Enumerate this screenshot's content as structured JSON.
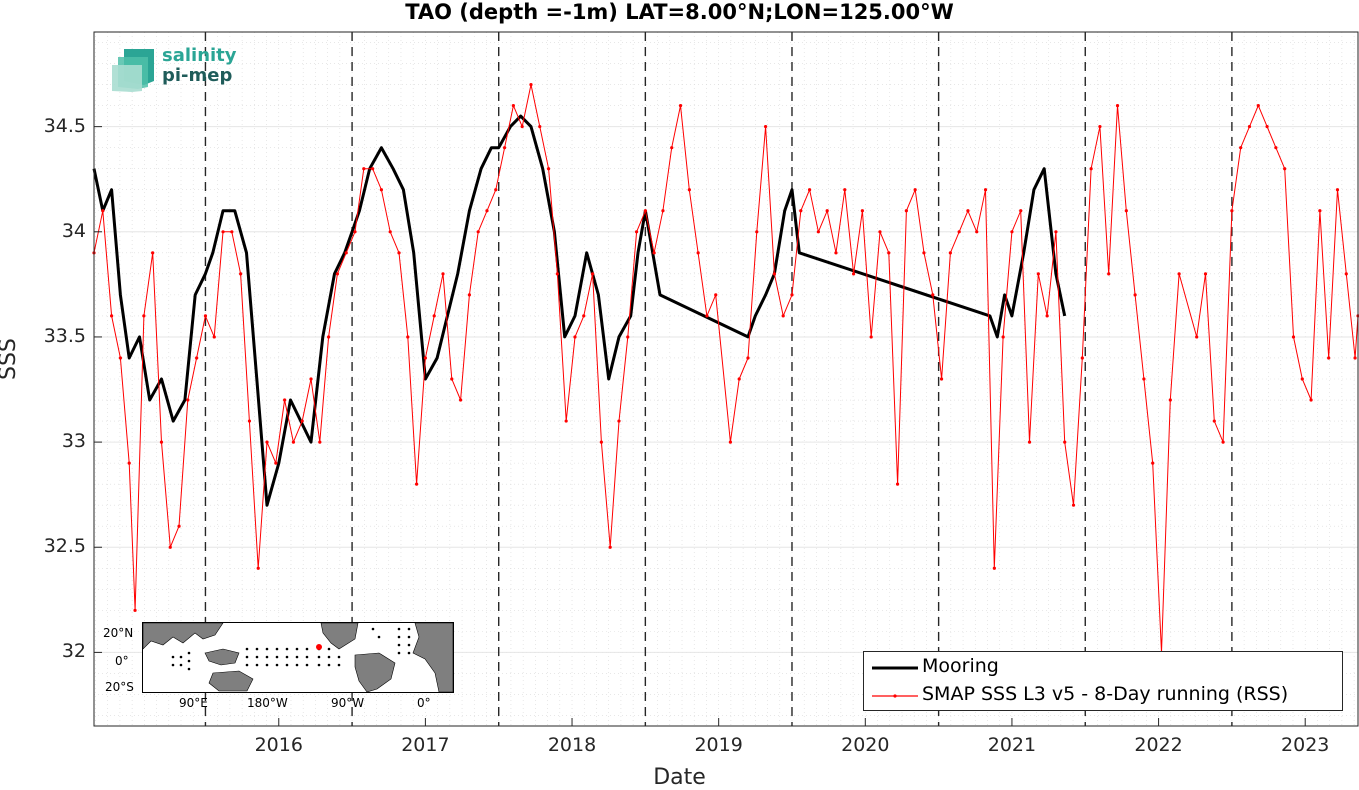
{
  "chart_data": {
    "type": "line",
    "title": "TAO (depth =-1m) LAT=8.00°N;LON=125.00°W",
    "xlabel": "Date",
    "ylabel": "SSS",
    "ylim": [
      31.65,
      34.95
    ],
    "xlim": [
      2015.24,
      2023.86
    ],
    "x_ticks": [
      "2016",
      "2017",
      "2018",
      "2019",
      "2020",
      "2021",
      "2022",
      "2023"
    ],
    "y_ticks": [
      "32",
      "32.5",
      "33",
      "33.5",
      "34",
      "34.5"
    ],
    "grid": true,
    "legend_position": "bottom-right",
    "year_lines": [
      2016,
      2017,
      2018,
      2019,
      2020,
      2021,
      2022,
      2023
    ],
    "series": [
      {
        "name": "Mooring",
        "color": "#000000",
        "x": [
          2015.24,
          2015.3,
          2015.36,
          2015.42,
          2015.48,
          2015.55,
          2015.62,
          2015.7,
          2015.78,
          2015.86,
          2015.93,
          2016.0,
          2016.05,
          2016.12,
          2016.2,
          2016.28,
          2016.35,
          2016.42,
          2016.5,
          2016.58,
          2016.65,
          2016.72,
          2016.8,
          2016.88,
          2016.95,
          2017.0,
          2017.05,
          2017.12,
          2017.2,
          2017.28,
          2017.35,
          2017.42,
          2017.5,
          2017.58,
          2017.65,
          2017.72,
          2017.8,
          2017.88,
          2017.95,
          2018.0,
          2018.08,
          2018.15,
          2018.22,
          2018.3,
          2018.38,
          2018.45,
          2018.52,
          2018.6,
          2018.68,
          2018.75,
          2018.82,
          2018.9,
          2018.95,
          2019.0,
          2019.05,
          2019.1,
          2019.7,
          2019.75,
          2019.82,
          2019.88,
          2019.95,
          2020.0,
          2020.05,
          2021.35,
          2021.4,
          2021.45,
          2021.5,
          2021.58,
          2021.65,
          2021.72,
          2021.8,
          2021.86
        ],
        "values": [
          34.3,
          34.1,
          34.2,
          33.7,
          33.4,
          33.5,
          33.2,
          33.3,
          33.1,
          33.2,
          33.7,
          33.8,
          33.9,
          34.1,
          34.1,
          33.9,
          33.3,
          32.7,
          32.9,
          33.2,
          33.1,
          33.0,
          33.5,
          33.8,
          33.9,
          34.0,
          34.1,
          34.3,
          34.4,
          34.3,
          34.2,
          33.9,
          33.3,
          33.4,
          33.6,
          33.8,
          34.1,
          34.3,
          34.4,
          34.4,
          34.5,
          34.55,
          34.5,
          34.3,
          34.0,
          33.5,
          33.6,
          33.9,
          33.7,
          33.3,
          33.5,
          33.6,
          33.9,
          34.1,
          33.9,
          33.7,
          33.5,
          33.6,
          33.7,
          33.8,
          34.1,
          34.2,
          33.9,
          33.6,
          33.5,
          33.7,
          33.6,
          33.9,
          34.2,
          34.3,
          33.8,
          33.6
        ]
      },
      {
        "name": "SMAP SSS L3 v5 - 8-Day running (RSS)",
        "color": "#ff0000",
        "x": [
          2015.24,
          2015.3,
          2015.36,
          2015.42,
          2015.48,
          2015.52,
          2015.58,
          2015.64,
          2015.7,
          2015.76,
          2015.82,
          2015.88,
          2015.94,
          2016.0,
          2016.06,
          2016.12,
          2016.18,
          2016.24,
          2016.3,
          2016.36,
          2016.42,
          2016.48,
          2016.54,
          2016.6,
          2016.66,
          2016.72,
          2016.78,
          2016.84,
          2016.9,
          2016.96,
          2017.02,
          2017.08,
          2017.14,
          2017.2,
          2017.26,
          2017.32,
          2017.38,
          2017.44,
          2017.5,
          2017.56,
          2017.62,
          2017.68,
          2017.74,
          2017.8,
          2017.86,
          2017.92,
          2017.98,
          2018.04,
          2018.1,
          2018.16,
          2018.22,
          2018.28,
          2018.34,
          2018.4,
          2018.46,
          2018.52,
          2018.58,
          2018.64,
          2018.7,
          2018.76,
          2018.82,
          2018.88,
          2018.94,
          2019.0,
          2019.06,
          2019.12,
          2019.18,
          2019.24,
          2019.3,
          2019.36,
          2019.42,
          2019.48,
          2019.58,
          2019.64,
          2019.7,
          2019.76,
          2019.82,
          2019.88,
          2019.94,
          2020.0,
          2020.06,
          2020.12,
          2020.18,
          2020.24,
          2020.3,
          2020.36,
          2020.42,
          2020.48,
          2020.54,
          2020.6,
          2020.66,
          2020.72,
          2020.78,
          2020.84,
          2020.9,
          2020.96,
          2021.02,
          2021.08,
          2021.14,
          2021.2,
          2021.26,
          2021.32,
          2021.38,
          2021.44,
          2021.5,
          2021.56,
          2021.62,
          2021.68,
          2021.74,
          2021.8,
          2021.86,
          2021.92,
          2021.98,
          2022.04,
          2022.1,
          2022.16,
          2022.22,
          2022.28,
          2022.34,
          2022.4,
          2022.46,
          2022.52,
          2022.58,
          2022.64,
          2022.76,
          2022.82,
          2022.88,
          2022.94,
          2023.0,
          2023.06,
          2023.12,
          2023.18,
          2023.24,
          2023.3,
          2023.36,
          2023.42,
          2023.48,
          2023.54,
          2023.6,
          2023.66,
          2023.72,
          2023.78,
          2023.84,
          2023.86
        ],
        "values": [
          33.9,
          34.1,
          33.6,
          33.4,
          32.9,
          32.2,
          33.6,
          33.9,
          33.0,
          32.5,
          32.6,
          33.2,
          33.4,
          33.6,
          33.5,
          34.0,
          34.0,
          33.8,
          33.1,
          32.4,
          33.0,
          32.9,
          33.2,
          33.0,
          33.1,
          33.3,
          33.0,
          33.5,
          33.8,
          33.9,
          34.0,
          34.3,
          34.3,
          34.2,
          34.0,
          33.9,
          33.5,
          32.8,
          33.4,
          33.6,
          33.8,
          33.3,
          33.2,
          33.7,
          34.0,
          34.1,
          34.2,
          34.4,
          34.6,
          34.5,
          34.7,
          34.5,
          34.3,
          33.8,
          33.1,
          33.5,
          33.6,
          33.8,
          33.0,
          32.5,
          33.1,
          33.5,
          34.0,
          34.1,
          33.9,
          34.1,
          34.4,
          34.6,
          34.2,
          33.9,
          33.6,
          33.7,
          33.0,
          33.3,
          33.4,
          34.0,
          34.5,
          33.8,
          33.6,
          33.7,
          34.1,
          34.2,
          34.0,
          34.1,
          33.9,
          34.2,
          33.8,
          34.1,
          33.5,
          34.0,
          33.9,
          32.8,
          34.1,
          34.2,
          33.9,
          33.7,
          33.3,
          33.9,
          34.0,
          34.1,
          34.0,
          34.2,
          32.4,
          33.5,
          34.0,
          34.1,
          33.0,
          33.8,
          33.6,
          34.0,
          33.0,
          32.7,
          33.4,
          34.3,
          34.5,
          33.8,
          34.6,
          34.1,
          33.7,
          33.3,
          32.9,
          32.0,
          33.2,
          33.8,
          33.5,
          33.8,
          33.1,
          33.0,
          34.1,
          34.4,
          34.5,
          34.6,
          34.5,
          34.4,
          34.3,
          33.5,
          33.3,
          33.2,
          34.1,
          33.4,
          34.2,
          33.8,
          33.4,
          33.6
        ]
      }
    ]
  },
  "legend": {
    "mooring_label": "Mooring",
    "smap_label": "SMAP SSS L3 v5 - 8-Day running (RSS)"
  },
  "logo": {
    "line1": "salinity",
    "line2": "pi-mep"
  },
  "inset_map": {
    "lat_labels": [
      "20°N",
      "0°",
      "20°S"
    ],
    "lon_labels": [
      "90°E",
      "180°W",
      "90°W",
      "0°"
    ]
  }
}
